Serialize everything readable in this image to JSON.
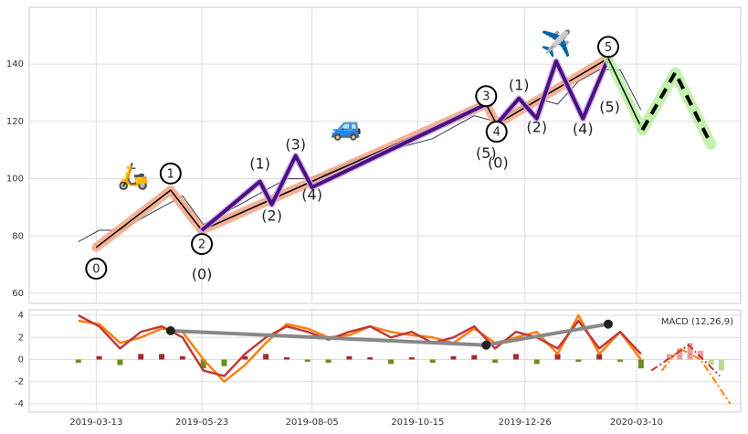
{
  "chart_data": [
    {
      "type": "line",
      "xlim": [
        "2019-01-27",
        "2020-05-19"
      ],
      "xticks": [
        "2019-03-13",
        "2019-05-23",
        "2019-08-05",
        "2019-10-15",
        "2019-12-26",
        "2020-03-10"
      ],
      "ylim": [
        56.5,
        159.8
      ],
      "yticks": [
        60,
        80,
        100,
        120,
        140
      ],
      "grid": true,
      "series": [
        {
          "color": "#2e3b55",
          "width": 1,
          "x": [
            "2019-03-01",
            "2019-03-15",
            "2019-03-29",
            "2019-04-12",
            "2019-04-26",
            "2019-05-10",
            "2019-05-24",
            "2019-06-07",
            "2019-06-21",
            "2019-07-05",
            "2019-07-19",
            "2019-08-02",
            "2019-08-16",
            "2019-08-30",
            "2019-09-13",
            "2019-09-27",
            "2019-10-11",
            "2019-10-25",
            "2019-11-08",
            "2019-11-22",
            "2019-12-06",
            "2019-12-20",
            "2020-01-03",
            "2020-01-17",
            "2020-01-31",
            "2020-02-14",
            "2020-02-28",
            "2020-03-13",
            "2020-03-27"
          ],
          "values": [
            78,
            82,
            82,
            86,
            90,
            94,
            84,
            88,
            92,
            96,
            100,
            100,
            102,
            106,
            108,
            110,
            112,
            114,
            118,
            122,
            120,
            124,
            128,
            126,
            134,
            138,
            138,
            124,
            null
          ]
        },
        {
          "color": "#000000",
          "width": 1.5,
          "halo": "#f4a582",
          "halo_width": 10,
          "x": [
            "2019-03-13",
            "2019-05-02",
            "2019-05-23",
            "2019-11-30",
            "2019-12-07",
            "2020-02-20"
          ],
          "values": [
            76,
            96,
            82,
            126,
            119,
            142
          ]
        },
        {
          "color": "#4b0f82",
          "width": 4,
          "halo": "#c9a6e0",
          "halo_width": 7,
          "x": [
            "2019-05-23",
            "2019-07-01",
            "2019-07-09",
            "2019-07-25",
            "2019-08-05",
            "2019-11-30"
          ],
          "values": [
            82,
            99,
            91,
            108,
            97,
            126
          ]
        },
        {
          "color": "#4b0f82",
          "width": 4,
          "halo": "#c9a6e0",
          "halo_width": 7,
          "x": [
            "2019-12-07",
            "2019-12-22",
            "2020-01-03",
            "2020-01-16",
            "2020-02-03",
            "2020-02-20"
          ],
          "values": [
            119,
            128,
            121,
            141,
            121,
            142
          ]
        },
        {
          "color": "#000000",
          "width": 1.5,
          "halo": "#b8f0a0",
          "halo_width": 10,
          "x": [
            "2020-02-20",
            "2020-03-14"
          ],
          "values": [
            142,
            117
          ]
        },
        {
          "color": "#000000",
          "width": 4,
          "dash": "12,8",
          "halo": "#b8f0a0",
          "halo_width": 12,
          "x": [
            "2020-03-14",
            "2020-04-05",
            "2020-04-29"
          ],
          "values": [
            117,
            137,
            112
          ]
        }
      ],
      "annotations": [
        {
          "text": "0",
          "x": "2019-03-13",
          "y": 68.6,
          "circled": true
        },
        {
          "text": "1",
          "x": "2019-05-02",
          "y": 101.8,
          "circled": true
        },
        {
          "text": "2",
          "x": "2019-05-23",
          "y": 77.2,
          "circled": true
        },
        {
          "text": "3",
          "x": "2019-11-30",
          "y": 128.8,
          "circled": true
        },
        {
          "text": "4",
          "x": "2019-12-07",
          "y": 116.4,
          "circled": true
        },
        {
          "text": "5",
          "x": "2020-02-20",
          "y": 146,
          "circled": true
        },
        {
          "text": "(0)",
          "x": "2019-05-23",
          "y": 66.7
        },
        {
          "text": "(1)",
          "x": "2019-07-01",
          "y": 105.3
        },
        {
          "text": "(2)",
          "x": "2019-07-09",
          "y": 87.1
        },
        {
          "text": "(3)",
          "x": "2019-07-25",
          "y": 112
        },
        {
          "text": "(4)",
          "x": "2019-08-05",
          "y": 94.4
        },
        {
          "text": "(5)",
          "x": "2019-11-30",
          "y": 109
        },
        {
          "text": "(0)",
          "x": "2019-12-08",
          "y": 105.6
        },
        {
          "text": "(1)",
          "x": "2019-12-22",
          "y": 132.7
        },
        {
          "text": "(2)",
          "x": "2020-01-03",
          "y": 118
        },
        {
          "text": "(4)",
          "x": "2020-02-03",
          "y": 117.4
        },
        {
          "text": "(5)",
          "x": "2020-02-21",
          "y": 125
        },
        {
          "text": "🛵",
          "x": "2019-04-07",
          "y": 100.8,
          "icon": true
        },
        {
          "text": "🚙",
          "x": "2019-08-28",
          "y": 118,
          "icon": true
        },
        {
          "text": "✈️",
          "x": "2020-01-16",
          "y": 147,
          "icon": true
        }
      ]
    },
    {
      "type": "macd",
      "title": "MACD (12,26,9)",
      "xlim": [
        "2019-01-27",
        "2020-05-19"
      ],
      "xticks": [
        "2019-03-13",
        "2019-05-23",
        "2019-08-05",
        "2019-10-15",
        "2019-12-26",
        "2020-03-10"
      ],
      "ylim": [
        -4.75,
        4.5
      ],
      "yticks": [
        -4,
        -2,
        0,
        2,
        4
      ],
      "grid": true,
      "series": [
        {
          "type": "bar",
          "color": "#a52a2a",
          "neg_color": "#6b8e23",
          "x": [
            "2019-03-01",
            "2019-03-15",
            "2019-03-29",
            "2019-04-12",
            "2019-04-26",
            "2019-05-10",
            "2019-05-24",
            "2019-06-07",
            "2019-06-21",
            "2019-07-05",
            "2019-07-19",
            "2019-08-02",
            "2019-08-16",
            "2019-08-30",
            "2019-09-13",
            "2019-09-27",
            "2019-10-11",
            "2019-10-25",
            "2019-11-08",
            "2019-11-22",
            "2019-12-06",
            "2019-12-20",
            "2020-01-03",
            "2020-01-17",
            "2020-01-31",
            "2020-02-14",
            "2020-02-28",
            "2020-03-13"
          ],
          "values": [
            -0.3,
            0.3,
            -0.5,
            0.5,
            0.5,
            0.3,
            -0.8,
            -0.6,
            0.3,
            0.5,
            0.2,
            -0.2,
            -0.3,
            0.3,
            0.2,
            -0.4,
            0.2,
            -0.3,
            0.3,
            0.4,
            -0.3,
            0.5,
            -0.4,
            0.5,
            -0.2,
            0.5,
            -0.2,
            -0.8
          ]
        },
        {
          "type": "bar",
          "color": "#e8a0a0",
          "neg_color": "#c0d890",
          "x": [
            "2020-04-01",
            "2020-04-08",
            "2020-04-15",
            "2020-04-22",
            "2020-04-29",
            "2020-05-06"
          ],
          "values": [
            0.5,
            1.0,
            1.5,
            0.8,
            -0.5,
            -1.0
          ]
        },
        {
          "color": "#ff7f0e",
          "width": 2.5,
          "x": [
            "2019-03-01",
            "2019-03-15",
            "2019-03-29",
            "2019-04-12",
            "2019-04-26",
            "2019-05-10",
            "2019-05-24",
            "2019-06-07",
            "2019-06-21",
            "2019-07-05",
            "2019-07-19",
            "2019-08-02",
            "2019-08-16",
            "2019-08-30",
            "2019-09-13",
            "2019-09-27",
            "2019-10-11",
            "2019-10-25",
            "2019-11-08",
            "2019-11-22",
            "2019-12-06",
            "2019-12-20",
            "2020-01-03",
            "2020-01-17",
            "2020-01-31",
            "2020-02-14",
            "2020-02-28",
            "2020-03-13"
          ],
          "values": [
            3.5,
            3.2,
            1.5,
            2.0,
            2.8,
            2.5,
            0.0,
            -2.0,
            -0.5,
            1.5,
            3.2,
            2.8,
            2.0,
            2.2,
            3.0,
            2.5,
            2.2,
            2.0,
            1.5,
            2.8,
            1.5,
            2.0,
            2.5,
            0.5,
            4.0,
            0.5,
            2.5,
            0.0
          ]
        },
        {
          "color": "#c03a3a",
          "width": 2.5,
          "x": [
            "2019-03-01",
            "2019-03-15",
            "2019-03-29",
            "2019-04-12",
            "2019-04-26",
            "2019-05-10",
            "2019-05-24",
            "2019-06-07",
            "2019-06-21",
            "2019-07-05",
            "2019-07-19",
            "2019-08-02",
            "2019-08-16",
            "2019-08-30",
            "2019-09-13",
            "2019-09-27",
            "2019-10-11",
            "2019-10-25",
            "2019-11-08",
            "2019-11-22",
            "2019-12-06",
            "2019-12-20",
            "2020-01-03",
            "2020-01-17",
            "2020-01-31",
            "2020-02-14",
            "2020-02-28",
            "2020-03-13"
          ],
          "values": [
            4.0,
            3.0,
            1.0,
            2.5,
            3.0,
            2.0,
            -1.0,
            -1.5,
            0.5,
            2.0,
            3.0,
            2.5,
            1.8,
            2.5,
            3.0,
            2.0,
            2.5,
            1.5,
            2.0,
            3.0,
            1.0,
            2.5,
            2.0,
            1.0,
            3.5,
            1.0,
            2.5,
            0.5
          ]
        },
        {
          "color": "#ff7f0e",
          "width": 2,
          "dash": "8,3,2,3",
          "x": [
            "2020-03-27",
            "2020-04-08",
            "2020-04-22",
            "2020-05-12"
          ],
          "values": [
            -1.0,
            1.0,
            0.0,
            -4.0
          ]
        },
        {
          "color": "#c03a3a",
          "width": 2,
          "dash": "8,3,2,3",
          "x": [
            "2020-03-20",
            "2020-04-14",
            "2020-05-05"
          ],
          "values": [
            -1.0,
            1.3,
            -1.5
          ]
        },
        {
          "color": "#888888",
          "width": 4,
          "markers": true,
          "x": [
            "2019-05-02",
            "2019-11-30",
            "2020-02-20"
          ],
          "values": [
            2.6,
            1.3,
            3.2
          ]
        }
      ]
    }
  ]
}
